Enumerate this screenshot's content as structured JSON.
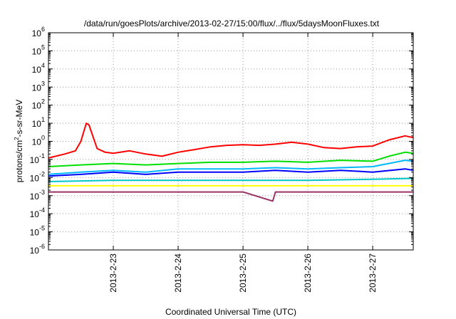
{
  "chart_data": {
    "type": "line",
    "title": "/data/run/goesPlots/archive/2013-02-27/15:00/flux/../flux/5daysMoonFluxes.txt",
    "xlabel": "Coordinated Universal Time (UTC)",
    "ylabel": {
      "base": "protons/cm",
      "sup": "2",
      "rest": "-s-sr-MeV"
    },
    "y_scale": "log",
    "ylim": [
      1e-06,
      1000000.0
    ],
    "y_ticks": [
      {
        "exp": "-6",
        "value": 1e-06
      },
      {
        "exp": "-5",
        "value": 1e-05
      },
      {
        "exp": "-4",
        "value": 0.0001
      },
      {
        "exp": "-3",
        "value": 0.001
      },
      {
        "exp": "-2",
        "value": 0.01
      },
      {
        "exp": "-1",
        "value": 0.1
      },
      {
        "exp": "0",
        "value": 1
      },
      {
        "exp": "1",
        "value": 10
      },
      {
        "exp": "2",
        "value": 100
      },
      {
        "exp": "3",
        "value": 1000
      },
      {
        "exp": "4",
        "value": 10000
      },
      {
        "exp": "5",
        "value": 100000
      },
      {
        "exp": "6",
        "value": 1000000
      }
    ],
    "y_tick_base": "10",
    "xlim": [
      "2013-02-22 00:00",
      "2013-02-27 15:00"
    ],
    "x_ticks": [
      "2013-2-23",
      "2013-2-24",
      "2013-2-25",
      "2013-2-26",
      "2013-2-27"
    ],
    "grid": true,
    "legend": "none",
    "series": [
      {
        "color": "#ff0000",
        "x": [
          "2013-02-22 00:00",
          "2013-02-22 06:00",
          "2013-02-22 10:00",
          "2013-02-22 12:00",
          "2013-02-22 14:00",
          "2013-02-22 15:00",
          "2013-02-22 18:00",
          "2013-02-22 21:00",
          "2013-02-23 00:00",
          "2013-02-23 06:00",
          "2013-02-23 12:00",
          "2013-02-23 18:00",
          "2013-02-24 00:00",
          "2013-02-24 06:00",
          "2013-02-24 12:00",
          "2013-02-24 18:00",
          "2013-02-25 00:00",
          "2013-02-25 06:00",
          "2013-02-25 12:00",
          "2013-02-25 18:00",
          "2013-02-26 00:00",
          "2013-02-26 06:00",
          "2013-02-26 12:00",
          "2013-02-26 18:00",
          "2013-02-27 00:00",
          "2013-02-27 06:00",
          "2013-02-27 12:00",
          "2013-02-27 15:00"
        ],
        "y": [
          0.12,
          0.2,
          0.3,
          1.0,
          10,
          8,
          0.4,
          0.25,
          0.22,
          0.3,
          0.2,
          0.15,
          0.25,
          0.35,
          0.5,
          0.6,
          0.65,
          0.6,
          0.7,
          0.9,
          0.7,
          0.45,
          0.4,
          0.5,
          0.55,
          1.2,
          2.0,
          1.6
        ]
      },
      {
        "color": "#00e000",
        "x": [
          "2013-02-22 00:00",
          "2013-02-22 12:00",
          "2013-02-23 00:00",
          "2013-02-23 12:00",
          "2013-02-24 00:00",
          "2013-02-24 12:00",
          "2013-02-25 00:00",
          "2013-02-25 12:00",
          "2013-02-26 00:00",
          "2013-02-26 12:00",
          "2013-02-27 00:00",
          "2013-02-27 06:00",
          "2013-02-27 12:00",
          "2013-02-27 15:00"
        ],
        "y": [
          0.04,
          0.05,
          0.06,
          0.05,
          0.06,
          0.07,
          0.07,
          0.08,
          0.07,
          0.09,
          0.08,
          0.15,
          0.25,
          0.22
        ]
      },
      {
        "color": "#00b8ff",
        "x": [
          "2013-02-22 00:00",
          "2013-02-22 12:00",
          "2013-02-23 00:00",
          "2013-02-23 12:00",
          "2013-02-24 00:00",
          "2013-02-24 12:00",
          "2013-02-25 00:00",
          "2013-02-25 12:00",
          "2013-02-26 00:00",
          "2013-02-26 12:00",
          "2013-02-27 00:00",
          "2013-02-27 12:00",
          "2013-02-27 15:00"
        ],
        "y": [
          0.015,
          0.02,
          0.025,
          0.02,
          0.03,
          0.03,
          0.03,
          0.035,
          0.03,
          0.035,
          0.04,
          0.09,
          0.08
        ]
      },
      {
        "color": "#0000ff",
        "x": [
          "2013-02-22 00:00",
          "2013-02-22 12:00",
          "2013-02-23 00:00",
          "2013-02-23 12:00",
          "2013-02-24 00:00",
          "2013-02-24 12:00",
          "2013-02-25 00:00",
          "2013-02-25 12:00",
          "2013-02-26 00:00",
          "2013-02-26 12:00",
          "2013-02-27 00:00",
          "2013-02-27 12:00",
          "2013-02-27 15:00"
        ],
        "y": [
          0.012,
          0.015,
          0.02,
          0.015,
          0.02,
          0.02,
          0.02,
          0.025,
          0.02,
          0.025,
          0.02,
          0.03,
          0.025
        ]
      },
      {
        "color": "#00c8c8",
        "x": [
          "2013-02-22 00:00",
          "2013-02-23 00:00",
          "2013-02-24 00:00",
          "2013-02-25 00:00",
          "2013-02-26 00:00",
          "2013-02-27 00:00",
          "2013-02-27 15:00"
        ],
        "y": [
          0.006,
          0.007,
          0.007,
          0.007,
          0.007,
          0.008,
          0.009
        ]
      },
      {
        "color": "#ffff00",
        "x": [
          "2013-02-22 00:00",
          "2013-02-23 00:00",
          "2013-02-24 00:00",
          "2013-02-25 00:00",
          "2013-02-26 00:00",
          "2013-02-27 00:00",
          "2013-02-27 15:00"
        ],
        "y": [
          0.0035,
          0.0035,
          0.0035,
          0.0035,
          0.0035,
          0.0035,
          0.0035
        ]
      },
      {
        "color": "#993366",
        "x": [
          "2013-02-22 00:00",
          "2013-02-23 00:00",
          "2013-02-24 00:00",
          "2013-02-25 00:00",
          "2013-02-25 11:00",
          "2013-02-25 12:00",
          "2013-02-26 00:00",
          "2013-02-27 00:00",
          "2013-02-27 15:00"
        ],
        "y": [
          0.0016,
          0.0016,
          0.0016,
          0.0016,
          0.0005,
          0.0016,
          0.0016,
          0.0016,
          0.0016
        ]
      }
    ]
  }
}
